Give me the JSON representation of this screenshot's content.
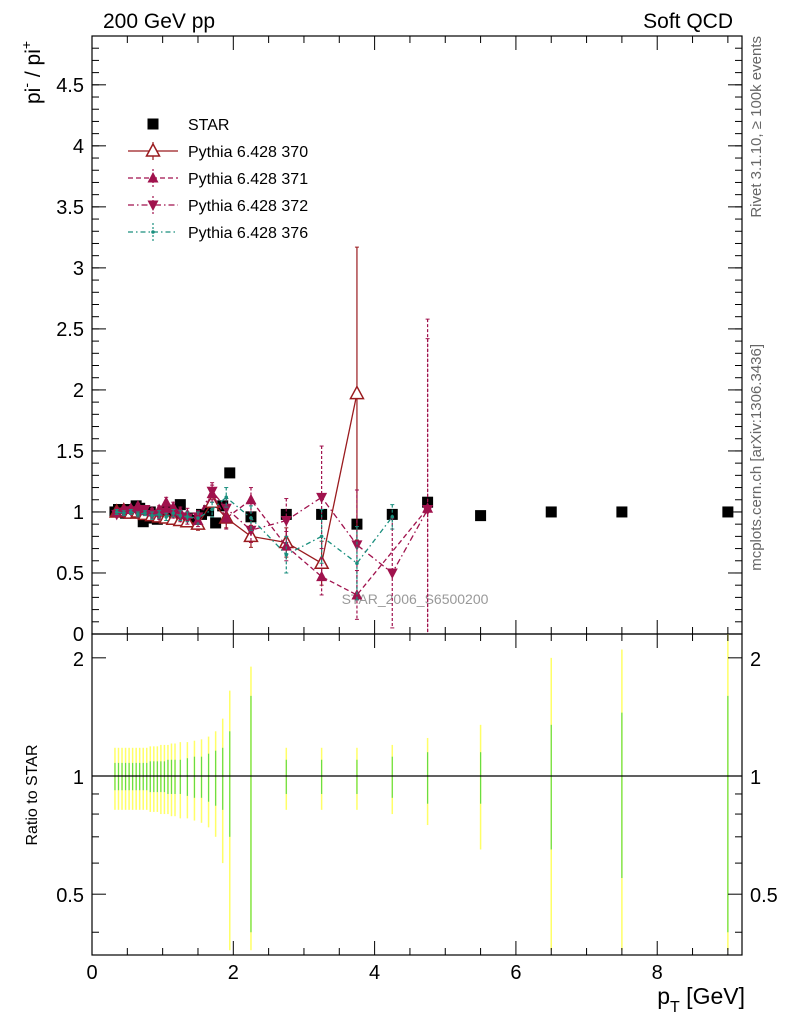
{
  "header": {
    "left": "200 GeV pp",
    "right": "Soft QCD"
  },
  "side_labels": {
    "rivet": "Rivet 3.1.10, ≥ 100k events",
    "mcplots": "mcplots.cern.ch [arXiv:1306.3436]"
  },
  "watermark": "STAR_2006_S6500200",
  "colors": {
    "star": "#000000",
    "p370": "#9a1b1f",
    "p371": "#a0124d",
    "p372": "#a0124d",
    "p376": "#1a8f7e",
    "ratio_band_green": "#66dd44",
    "ratio_band_yellow": "#ffff66"
  },
  "chart_data": [
    {
      "type": "scatter",
      "panel": "main",
      "ylabel_base": "pi",
      "ylabel_num_sup": "-",
      "ylabel_sep": " / ",
      "ylabel_den_sup": "+",
      "xlim": [
        0,
        9.2
      ],
      "ylim": [
        0,
        4.9
      ],
      "yticks": [
        "0",
        "0.5",
        "1",
        "1.5",
        "2",
        "2.5",
        "3",
        "3.5",
        "4",
        "4.5"
      ],
      "legend_position": "top-left",
      "series": [
        {
          "name": "STAR",
          "marker": "square",
          "color": "#000000",
          "x": [
            0.325,
            0.375,
            0.425,
            0.475,
            0.525,
            0.575,
            0.625,
            0.675,
            0.725,
            0.775,
            0.825,
            0.875,
            0.925,
            0.975,
            1.025,
            1.075,
            1.125,
            1.175,
            1.25,
            1.35,
            1.45,
            1.55,
            1.65,
            1.75,
            1.85,
            1.95,
            2.25,
            2.75,
            3.25,
            3.75,
            4.25,
            4.75,
            5.5,
            6.5,
            7.5,
            9.0
          ],
          "y": [
            1.0,
            1.02,
            1.01,
            0.99,
            1.02,
            1.0,
            1.05,
            1.03,
            0.92,
            0.98,
            1.0,
            0.95,
            0.94,
            0.97,
            1.0,
            1.01,
            0.96,
            0.99,
            1.06,
            0.95,
            0.93,
            0.98,
            1.01,
            0.91,
            1.05,
            1.32,
            0.96,
            0.98,
            0.98,
            0.9,
            0.98,
            1.08,
            0.97,
            1.0,
            1.0,
            1.0
          ]
        },
        {
          "name": "Pythia 6.428 370",
          "marker": "triangle-up-open",
          "line": "solid",
          "color": "#9a1b1f",
          "x": [
            0.35,
            0.45,
            0.55,
            0.65,
            0.75,
            0.85,
            0.95,
            1.05,
            1.15,
            1.25,
            1.35,
            1.5,
            1.7,
            1.9,
            2.25,
            2.75,
            3.25,
            3.75
          ],
          "y": [
            1.0,
            1.01,
            0.99,
            1.0,
            0.98,
            0.97,
            0.96,
            0.95,
            0.94,
            0.93,
            0.92,
            0.9,
            1.08,
            0.95,
            0.8,
            0.75,
            0.58,
            1.97
          ],
          "yerr": [
            0.02,
            0.02,
            0.02,
            0.02,
            0.02,
            0.03,
            0.03,
            0.03,
            0.03,
            0.04,
            0.04,
            0.05,
            0.06,
            0.08,
            0.09,
            0.12,
            0.18,
            1.2
          ]
        },
        {
          "name": "Pythia 6.428 371",
          "marker": "triangle-up",
          "line": "dashed",
          "color": "#a0124d",
          "x": [
            0.35,
            0.45,
            0.55,
            0.65,
            0.75,
            0.85,
            0.95,
            1.05,
            1.15,
            1.25,
            1.35,
            1.5,
            1.7,
            1.9,
            2.25,
            2.75,
            3.25,
            3.75,
            4.75
          ],
          "y": [
            1.0,
            1.02,
            1.03,
            1.05,
            1.01,
            1.0,
            1.02,
            1.08,
            1.04,
            1.0,
            0.98,
            0.93,
            1.15,
            0.95,
            1.1,
            0.72,
            0.47,
            0.32,
            1.03
          ],
          "yerr": [
            0.02,
            0.02,
            0.02,
            0.02,
            0.03,
            0.03,
            0.03,
            0.04,
            0.04,
            0.04,
            0.05,
            0.05,
            0.07,
            0.09,
            0.1,
            0.12,
            0.15,
            0.2,
            1.55
          ]
        },
        {
          "name": "Pythia 6.428 372",
          "marker": "triangle-down",
          "line": "dashdot",
          "color": "#a0124d",
          "x": [
            0.35,
            0.45,
            0.55,
            0.65,
            0.75,
            0.85,
            0.95,
            1.05,
            1.15,
            1.25,
            1.35,
            1.5,
            1.7,
            1.9,
            2.25,
            2.75,
            3.25,
            3.75,
            4.25,
            4.75
          ],
          "y": [
            0.98,
            1.0,
            1.01,
            0.99,
            1.02,
            0.98,
            0.97,
            1.0,
            0.99,
            0.96,
            0.95,
            0.96,
            1.17,
            1.03,
            0.85,
            0.93,
            1.12,
            0.73,
            0.5,
            1.02
          ],
          "yerr": [
            0.02,
            0.02,
            0.02,
            0.02,
            0.03,
            0.03,
            0.03,
            0.03,
            0.04,
            0.04,
            0.05,
            0.05,
            0.07,
            0.08,
            0.1,
            0.18,
            0.42,
            0.45,
            0.45,
            1.4
          ]
        },
        {
          "name": "Pythia 6.428 376",
          "marker": "dot",
          "line": "dashdot-teal",
          "color": "#1a8f7e",
          "x": [
            0.35,
            0.45,
            0.55,
            0.65,
            0.75,
            0.85,
            0.95,
            1.05,
            1.15,
            1.25,
            1.35,
            1.5,
            1.7,
            1.9,
            2.25,
            2.75,
            3.25,
            3.75,
            4.25
          ],
          "y": [
            1.0,
            0.99,
            1.0,
            0.98,
            0.99,
            0.97,
            0.98,
            0.96,
            0.99,
            0.97,
            0.96,
            0.95,
            1.02,
            1.12,
            0.95,
            0.65,
            0.8,
            0.58,
            0.96
          ],
          "yerr": [
            0.02,
            0.02,
            0.02,
            0.02,
            0.02,
            0.03,
            0.03,
            0.03,
            0.03,
            0.04,
            0.04,
            0.05,
            0.06,
            0.08,
            0.1,
            0.15,
            0.22,
            0.3,
            0.1
          ]
        }
      ]
    },
    {
      "type": "band",
      "panel": "ratio",
      "ylabel": "Ratio to STAR",
      "xlabel_base": "p",
      "xlabel_sub": "T",
      "xlabel_unit": " [GeV]",
      "xlim": [
        0,
        9.2
      ],
      "ylim": [
        0.35,
        2.3
      ],
      "ytick_labels": [
        "0.5",
        "1",
        "2"
      ],
      "yticks": [
        0.5,
        1,
        2
      ],
      "xticks": [
        "0",
        "2",
        "4",
        "6",
        "8"
      ],
      "x": [
        0.325,
        0.375,
        0.425,
        0.475,
        0.525,
        0.575,
        0.625,
        0.675,
        0.725,
        0.775,
        0.825,
        0.875,
        0.925,
        0.975,
        1.025,
        1.075,
        1.125,
        1.175,
        1.25,
        1.35,
        1.45,
        1.55,
        1.65,
        1.75,
        1.85,
        1.95,
        2.25,
        2.75,
        3.25,
        3.75,
        4.25,
        4.75,
        5.5,
        6.5,
        7.5,
        9.0
      ],
      "stat_err": [
        0.08,
        0.08,
        0.08,
        0.08,
        0.08,
        0.08,
        0.08,
        0.08,
        0.08,
        0.08,
        0.09,
        0.09,
        0.09,
        0.09,
        0.09,
        0.1,
        0.1,
        0.1,
        0.1,
        0.11,
        0.12,
        0.12,
        0.14,
        0.16,
        0.18,
        0.3,
        0.6,
        0.1,
        0.1,
        0.1,
        0.12,
        0.15,
        0.15,
        0.35,
        0.45,
        0.6
      ],
      "tot_err": [
        0.18,
        0.18,
        0.18,
        0.18,
        0.18,
        0.18,
        0.18,
        0.18,
        0.18,
        0.18,
        0.19,
        0.19,
        0.19,
        0.2,
        0.2,
        0.2,
        0.21,
        0.21,
        0.22,
        0.22,
        0.23,
        0.24,
        0.26,
        0.3,
        0.4,
        0.65,
        0.9,
        0.18,
        0.18,
        0.18,
        0.2,
        0.25,
        0.35,
        1.0,
        1.1,
        1.3
      ]
    }
  ]
}
